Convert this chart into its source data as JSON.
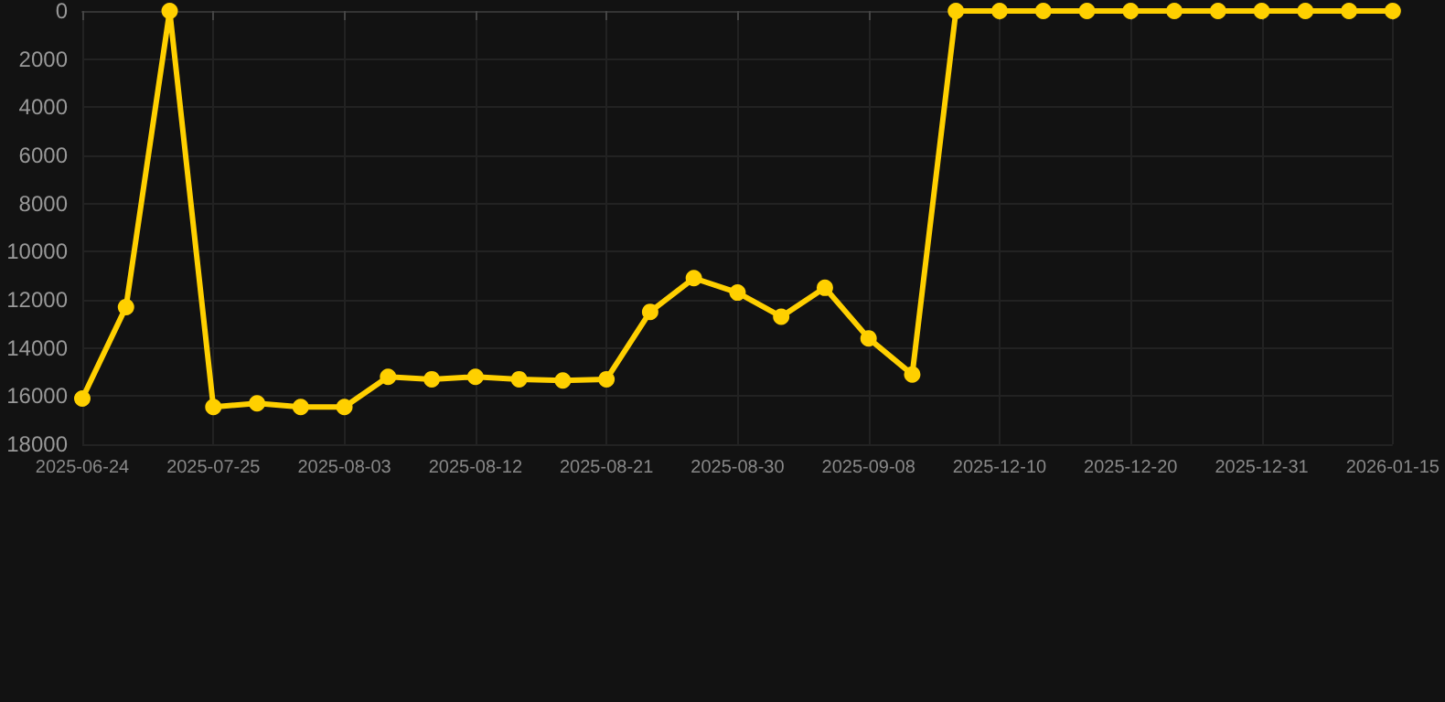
{
  "chart_data": {
    "type": "line",
    "categories": [
      "2025-06-24",
      null,
      null,
      "2025-07-25",
      null,
      null,
      "2025-08-03",
      null,
      null,
      "2025-08-12",
      null,
      null,
      "2025-08-21",
      null,
      null,
      "2025-08-30",
      null,
      null,
      "2025-09-08",
      null,
      null,
      "2025-12-10",
      null,
      null,
      "2025-12-20",
      null,
      null,
      "2025-12-31",
      null,
      null,
      "2026-01-15"
    ],
    "series": [
      {
        "color": "#ffd000",
        "values": [
          16100,
          12300,
          0,
          16450,
          16300,
          16450,
          16450,
          15200,
          15300,
          15200,
          15300,
          15350,
          15300,
          12500,
          11100,
          11700,
          12700,
          11500,
          13600,
          15100,
          0,
          0,
          0,
          0,
          0,
          0,
          0,
          0,
          0,
          0,
          0
        ]
      }
    ],
    "ylim": [
      18000,
      0
    ],
    "yticks": [
      0,
      2000,
      4000,
      6000,
      8000,
      10000,
      12000,
      14000,
      16000,
      18000
    ],
    "grid": true,
    "marker": "circle",
    "line_style": "solid"
  }
}
